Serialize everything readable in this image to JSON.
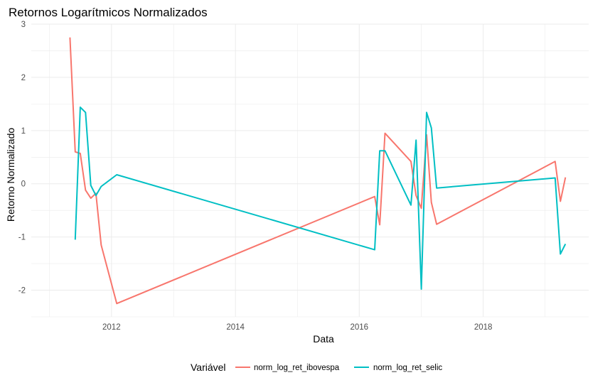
{
  "chart_data": {
    "type": "line",
    "title": "Retornos Logarítmicos Normalizados",
    "xlabel": "Data",
    "ylabel": "Retorno Normalizado",
    "x_ticks": [
      "2012",
      "2014",
      "2016",
      "2018"
    ],
    "y_ticks": [
      "-2",
      "-1",
      "0",
      "1",
      "2",
      "3"
    ],
    "xlim": [
      "2010-09-15",
      "2019-09-15"
    ],
    "ylim": [
      -2.5,
      3.0
    ],
    "grid": true,
    "legend": {
      "title": "Variável",
      "position": "bottom"
    },
    "series": [
      {
        "name": "norm_log_ret_ibovespa",
        "color": "#F8766D",
        "points": [
          [
            "2011-05-01",
            2.75
          ],
          [
            "2011-06-01",
            0.6
          ],
          [
            "2011-07-01",
            0.57
          ],
          [
            "2011-08-01",
            -0.12
          ],
          [
            "2011-09-01",
            -0.27
          ],
          [
            "2011-10-01",
            -0.18
          ],
          [
            "2011-11-01",
            -1.15
          ],
          [
            "2012-02-01",
            -2.25
          ],
          [
            "2016-04-01",
            -0.24
          ],
          [
            "2016-05-01",
            -0.77
          ],
          [
            "2016-06-01",
            0.95
          ],
          [
            "2016-11-01",
            0.42
          ],
          [
            "2016-12-01",
            -0.22
          ],
          [
            "2017-01-01",
            -0.46
          ],
          [
            "2017-02-01",
            0.92
          ],
          [
            "2017-03-01",
            -0.35
          ],
          [
            "2017-04-01",
            -0.76
          ],
          [
            "2019-03-01",
            0.42
          ],
          [
            "2019-04-01",
            -0.33
          ],
          [
            "2019-05-01",
            0.12
          ]
        ]
      },
      {
        "name": "norm_log_ret_selic",
        "color": "#00BFC4",
        "points": [
          [
            "2011-06-01",
            -1.05
          ],
          [
            "2011-07-01",
            1.44
          ],
          [
            "2011-08-01",
            1.34
          ],
          [
            "2011-09-01",
            -0.03
          ],
          [
            "2011-10-01",
            -0.22
          ],
          [
            "2011-11-01",
            -0.05
          ],
          [
            "2012-02-01",
            0.17
          ],
          [
            "2016-04-01",
            -1.24
          ],
          [
            "2016-05-01",
            0.62
          ],
          [
            "2016-06-01",
            0.62
          ],
          [
            "2016-11-01",
            -0.4
          ],
          [
            "2016-12-01",
            0.82
          ],
          [
            "2017-01-01",
            -1.98
          ],
          [
            "2017-02-01",
            1.34
          ],
          [
            "2017-03-01",
            1.05
          ],
          [
            "2017-04-01",
            -0.08
          ],
          [
            "2019-03-01",
            0.11
          ],
          [
            "2019-04-01",
            -1.32
          ],
          [
            "2019-05-01",
            -1.13
          ]
        ]
      }
    ]
  }
}
